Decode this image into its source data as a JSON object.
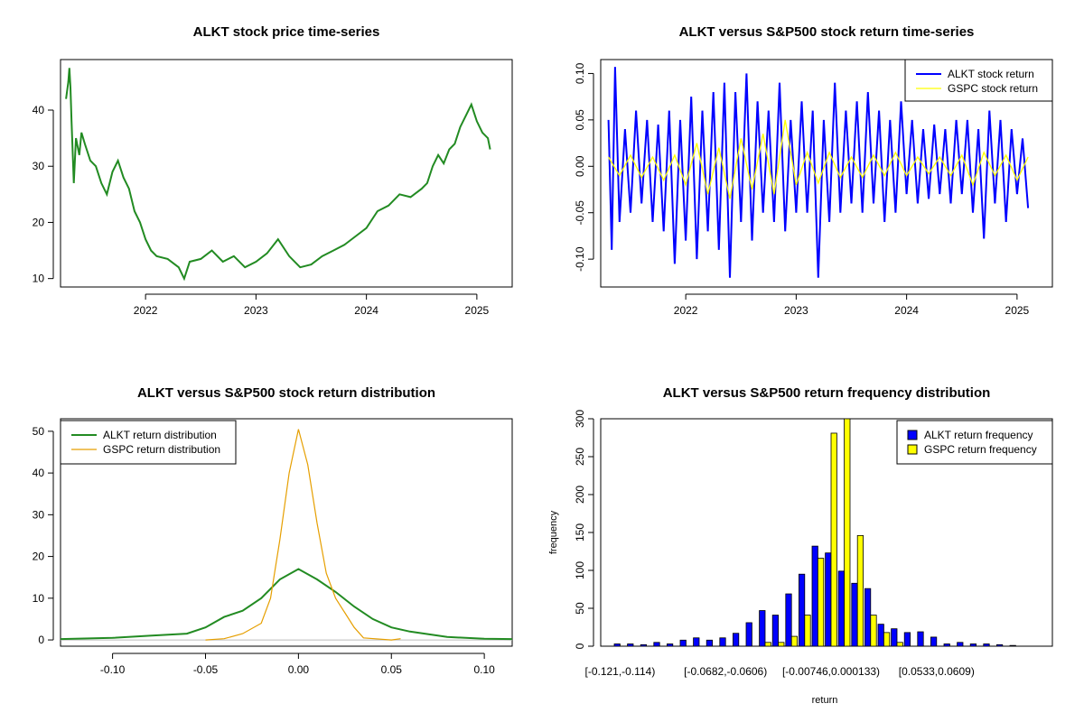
{
  "chart_data": [
    {
      "id": "price",
      "type": "line",
      "title": "ALKT stock price time-series",
      "xlabel": "",
      "ylabel": "",
      "xlim": [
        2021.23,
        2025.32
      ],
      "ylim": [
        8.5,
        49
      ],
      "x_ticks": [
        2022,
        2023,
        2024,
        2025
      ],
      "x_tick_labels": [
        "2022",
        "2023",
        "2024",
        "2025"
      ],
      "y_ticks": [
        10,
        20,
        30,
        40
      ],
      "y_tick_labels": [
        "10",
        "20",
        "30",
        "40"
      ],
      "grid": false,
      "series": [
        {
          "color": "#228B22",
          "x": [
            2021.28,
            2021.3,
            2021.31,
            2021.32,
            2021.33,
            2021.35,
            2021.37,
            2021.4,
            2021.42,
            2021.45,
            2021.5,
            2021.55,
            2021.6,
            2021.65,
            2021.7,
            2021.75,
            2021.8,
            2021.85,
            2021.9,
            2021.95,
            2022.0,
            2022.05,
            2022.1,
            2022.2,
            2022.3,
            2022.35,
            2022.4,
            2022.5,
            2022.6,
            2022.7,
            2022.8,
            2022.9,
            2023.0,
            2023.1,
            2023.2,
            2023.3,
            2023.4,
            2023.5,
            2023.6,
            2023.7,
            2023.8,
            2023.9,
            2024.0,
            2024.1,
            2024.2,
            2024.3,
            2024.4,
            2024.5,
            2024.55,
            2024.6,
            2024.65,
            2024.7,
            2024.75,
            2024.8,
            2024.85,
            2024.9,
            2024.95,
            2025.0,
            2025.05,
            2025.1,
            2025.12
          ],
          "y": [
            42,
            45,
            47.5,
            44,
            38,
            27,
            35,
            32,
            36,
            34,
            31,
            30,
            27,
            25,
            29,
            31,
            28,
            26,
            22,
            20,
            17,
            15,
            14,
            13.5,
            12,
            10,
            13,
            13.5,
            15,
            13,
            14,
            12,
            13,
            14.5,
            17,
            14,
            12,
            12.5,
            14,
            15,
            16,
            17.5,
            19,
            22,
            23,
            25,
            24.5,
            26,
            27,
            30,
            32,
            30.5,
            33,
            34,
            37,
            39,
            41,
            38,
            36,
            35,
            33
          ]
        }
      ]
    },
    {
      "id": "returns",
      "type": "line",
      "title": "ALKT versus S&P500 stock return time-series",
      "xlabel": "",
      "ylabel": "",
      "xlim": [
        2021.23,
        2025.32
      ],
      "ylim": [
        -0.13,
        0.115
      ],
      "x_ticks": [
        2022,
        2023,
        2024,
        2025
      ],
      "x_tick_labels": [
        "2022",
        "2023",
        "2024",
        "2025"
      ],
      "y_ticks": [
        -0.1,
        -0.05,
        0,
        0.05,
        0.1
      ],
      "y_tick_labels": [
        "-0.10",
        "-0.05",
        "0.00",
        "0.05",
        "0.10"
      ],
      "grid": false,
      "legend": "top-right",
      "series": [
        {
          "name": "ALKT stock return",
          "color": "#0000FF",
          "x": [
            2021.3,
            2021.33,
            2021.36,
            2021.4,
            2021.45,
            2021.5,
            2021.55,
            2021.6,
            2021.65,
            2021.7,
            2021.75,
            2021.8,
            2021.85,
            2021.9,
            2021.95,
            2022.0,
            2022.05,
            2022.1,
            2022.15,
            2022.2,
            2022.25,
            2022.3,
            2022.35,
            2022.4,
            2022.45,
            2022.5,
            2022.55,
            2022.6,
            2022.65,
            2022.7,
            2022.75,
            2022.8,
            2022.85,
            2022.9,
            2022.95,
            2023.0,
            2023.05,
            2023.1,
            2023.15,
            2023.2,
            2023.25,
            2023.3,
            2023.35,
            2023.4,
            2023.45,
            2023.5,
            2023.55,
            2023.6,
            2023.65,
            2023.7,
            2023.75,
            2023.8,
            2023.85,
            2023.9,
            2023.95,
            2024.0,
            2024.05,
            2024.1,
            2024.15,
            2024.2,
            2024.25,
            2024.3,
            2024.35,
            2024.4,
            2024.45,
            2024.5,
            2024.55,
            2024.6,
            2024.65,
            2024.7,
            2024.75,
            2024.8,
            2024.85,
            2024.9,
            2024.95,
            2025.0,
            2025.05,
            2025.1
          ],
          "y": [
            0.05,
            -0.09,
            0.107,
            -0.06,
            0.04,
            -0.05,
            0.06,
            -0.04,
            0.05,
            -0.06,
            0.045,
            -0.07,
            0.06,
            -0.105,
            0.05,
            -0.08,
            0.075,
            -0.1,
            0.06,
            -0.07,
            0.08,
            -0.09,
            0.09,
            -0.12,
            0.08,
            -0.06,
            0.1,
            -0.08,
            0.07,
            -0.05,
            0.06,
            -0.06,
            0.09,
            -0.07,
            0.05,
            -0.05,
            0.07,
            -0.05,
            0.06,
            -0.12,
            0.05,
            -0.06,
            0.09,
            -0.05,
            0.06,
            -0.04,
            0.07,
            -0.05,
            0.08,
            -0.04,
            0.06,
            -0.06,
            0.05,
            -0.05,
            0.07,
            -0.03,
            0.05,
            -0.04,
            0.04,
            -0.035,
            0.045,
            -0.03,
            0.04,
            -0.04,
            0.05,
            -0.03,
            0.05,
            -0.05,
            0.04,
            -0.078,
            0.06,
            -0.04,
            0.05,
            -0.06,
            0.04,
            -0.03,
            0.03,
            -0.045
          ]
        },
        {
          "name": "GSPC stock return",
          "color": "#FFFF00",
          "x": [
            2021.3,
            2021.4,
            2021.5,
            2021.6,
            2021.7,
            2021.8,
            2021.9,
            2022.0,
            2022.1,
            2022.2,
            2022.3,
            2022.4,
            2022.5,
            2022.6,
            2022.7,
            2022.8,
            2022.9,
            2023.0,
            2023.1,
            2023.2,
            2023.3,
            2023.4,
            2023.5,
            2023.6,
            2023.7,
            2023.8,
            2023.9,
            2024.0,
            2024.1,
            2024.2,
            2024.3,
            2024.4,
            2024.5,
            2024.6,
            2024.7,
            2024.8,
            2024.9,
            2025.0,
            2025.1
          ],
          "y": [
            0.01,
            -0.01,
            0.012,
            -0.012,
            0.01,
            -0.015,
            0.012,
            -0.02,
            0.025,
            -0.03,
            0.02,
            -0.035,
            0.03,
            -0.025,
            0.035,
            -0.03,
            0.05,
            -0.02,
            0.015,
            -0.018,
            0.015,
            -0.012,
            0.01,
            -0.012,
            0.012,
            -0.01,
            0.015,
            -0.01,
            0.01,
            -0.008,
            0.01,
            -0.01,
            0.012,
            -0.02,
            0.015,
            -0.01,
            0.012,
            -0.015,
            0.01
          ]
        }
      ]
    },
    {
      "id": "density",
      "type": "line",
      "title": "ALKT versus S&P500 stock return distribution",
      "xlabel": "",
      "ylabel": "",
      "xlim": [
        -0.128,
        0.115
      ],
      "ylim": [
        -1.5,
        53
      ],
      "x_ticks": [
        -0.1,
        -0.05,
        0,
        0.05,
        0.1
      ],
      "x_tick_labels": [
        "-0.10",
        "-0.05",
        "0.00",
        "0.05",
        "0.10"
      ],
      "y_ticks": [
        0,
        10,
        20,
        30,
        40,
        50
      ],
      "y_tick_labels": [
        "0",
        "10",
        "20",
        "30",
        "40",
        "50"
      ],
      "grid": false,
      "legend": "top-left",
      "series": [
        {
          "name": "ALKT return distribution",
          "color": "#228B22",
          "x": [
            -0.128,
            -0.1,
            -0.08,
            -0.06,
            -0.05,
            -0.04,
            -0.03,
            -0.02,
            -0.01,
            0.0,
            0.01,
            0.02,
            0.03,
            0.04,
            0.05,
            0.06,
            0.08,
            0.1,
            0.115
          ],
          "y": [
            0.2,
            0.5,
            1.0,
            1.5,
            3.0,
            5.5,
            7.0,
            10.0,
            14.5,
            17.0,
            14.5,
            11.5,
            8.0,
            5.0,
            3.0,
            2.0,
            0.7,
            0.3,
            0.2
          ]
        },
        {
          "name": "GSPC return distribution",
          "color": "#E69F00",
          "x": [
            -0.05,
            -0.04,
            -0.03,
            -0.02,
            -0.015,
            -0.01,
            -0.005,
            0.0,
            0.005,
            0.01,
            0.015,
            0.02,
            0.025,
            0.03,
            0.035,
            0.05,
            0.055
          ],
          "y": [
            0,
            0.3,
            1.5,
            4.0,
            10.0,
            24.0,
            40.0,
            50.5,
            42.0,
            28.0,
            16.0,
            10.0,
            6.5,
            3.0,
            0.5,
            0,
            0.3
          ]
        }
      ]
    },
    {
      "id": "histogram",
      "type": "bar",
      "title": "ALKT versus S&P500 return frequency distribution",
      "xlabel": "return",
      "ylabel": "frequency",
      "ylim": [
        0,
        300
      ],
      "y_ticks": [
        0,
        50,
        100,
        150,
        200,
        250,
        300
      ],
      "y_tick_labels": [
        "0",
        "50",
        "100",
        "150",
        "200",
        "250",
        "300"
      ],
      "categories": [
        "[-0.121,-0.114)",
        "",
        "",
        "",
        "",
        "",
        "",
        "",
        "[-0.0682,-0.0606)",
        "",
        "",
        "",
        "",
        "",
        "",
        "",
        "[-0.00746,0.000133)",
        "",
        "",
        "",
        "",
        "",
        "",
        "",
        "[0.0533,0.0609)",
        "",
        "",
        "",
        "",
        "",
        "",
        ""
      ],
      "grid": false,
      "legend": "top-right",
      "series": [
        {
          "name": "ALKT return frequency",
          "color": "#0000FF",
          "values": [
            3,
            3,
            2,
            5,
            3,
            8,
            11,
            8,
            11,
            17,
            31,
            47,
            41,
            69,
            95,
            132,
            123,
            99,
            83,
            76,
            29,
            23,
            18,
            19,
            12,
            3,
            5,
            3,
            3,
            2,
            1,
            0
          ]
        },
        {
          "name": "GSPC return frequency",
          "color": "#FFFF00",
          "values": [
            0,
            0,
            0,
            0,
            0,
            0,
            0,
            0,
            0,
            0,
            0,
            5,
            5,
            13,
            41,
            116,
            281,
            300,
            146,
            41,
            18,
            5,
            0,
            0,
            0,
            0,
            0,
            0,
            0,
            0,
            0,
            0
          ]
        }
      ]
    }
  ]
}
